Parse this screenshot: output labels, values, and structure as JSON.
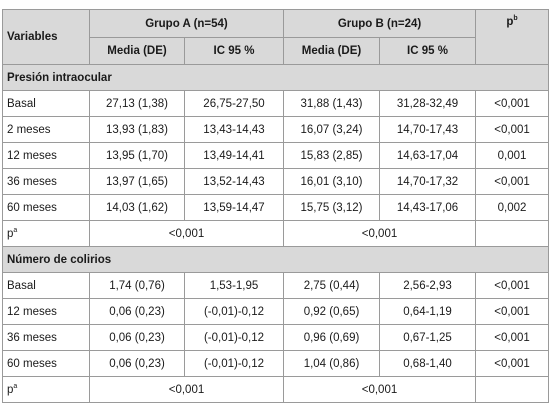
{
  "header": {
    "variables": "Variables",
    "group_a": "Grupo A (n=54)",
    "group_b": "Grupo B (n=24)",
    "p_label": "p",
    "p_sup": "b",
    "media_a": "Media (DE)",
    "ic_a": "IC 95 %",
    "media_b": "Media (DE)",
    "ic_b": "IC 95 %"
  },
  "sections": [
    {
      "title": "Presión intraocular",
      "rows": [
        {
          "label": "Basal",
          "a_mean": "27,13 (1,38)",
          "a_ci": "26,75-27,50",
          "b_mean": "31,88 (1,43)",
          "b_ci": "31,28-32,49",
          "p": "<0,001"
        },
        {
          "label": "2 meses",
          "a_mean": "13,93 (1,83)",
          "a_ci": "13,43-14,43",
          "b_mean": "16,07 (3,24)",
          "b_ci": "14,70-17,43",
          "p": "<0,001"
        },
        {
          "label": "12 meses",
          "a_mean": "13,95 (1,70)",
          "a_ci": "13,49-14,41",
          "b_mean": "15,83 (2,85)",
          "b_ci": "14,63-17,04",
          "p": "0,001"
        },
        {
          "label": "36 meses",
          "a_mean": "13,97 (1,65)",
          "a_ci": "13,52-14,43",
          "b_mean": "16,01 (3,10)",
          "b_ci": "14,70-17,32",
          "p": "<0,001"
        },
        {
          "label": "60 meses",
          "a_mean": "14,03 (1,62)",
          "a_ci": "13,59-14,47",
          "b_mean": "15,75 (3,12)",
          "b_ci": "14,43-17,06",
          "p": "0,002"
        }
      ],
      "pa": {
        "label": "p",
        "sup": "a",
        "a": "<0,001",
        "b": "<0,001"
      }
    },
    {
      "title": "Número de colirios",
      "rows": [
        {
          "label": "Basal",
          "a_mean": "1,74 (0,76)",
          "a_ci": "1,53-1,95",
          "b_mean": "2,75 (0,44)",
          "b_ci": "2,56-2,93",
          "p": "<0,001"
        },
        {
          "label": "12 meses",
          "a_mean": "0,06 (0,23)",
          "a_ci": "(-0,01)-0,12",
          "b_mean": "0,92 (0,65)",
          "b_ci": "0,64-1,19",
          "p": "<0,001"
        },
        {
          "label": "36 meses",
          "a_mean": "0,06 (0,23)",
          "a_ci": "(-0,01)-0,12",
          "b_mean": "0,96 (0,69)",
          "b_ci": "0,67-1,25",
          "p": "<0,001"
        },
        {
          "label": "60 meses",
          "a_mean": "0,06 (0,23)",
          "a_ci": "(-0,01)-0,12",
          "b_mean": "1,04 (0,86)",
          "b_ci": "0,68-1,40",
          "p": "<0,001"
        }
      ],
      "pa": {
        "label": "p",
        "sup": "a",
        "a": "<0,001",
        "b": "<0,001"
      }
    }
  ]
}
